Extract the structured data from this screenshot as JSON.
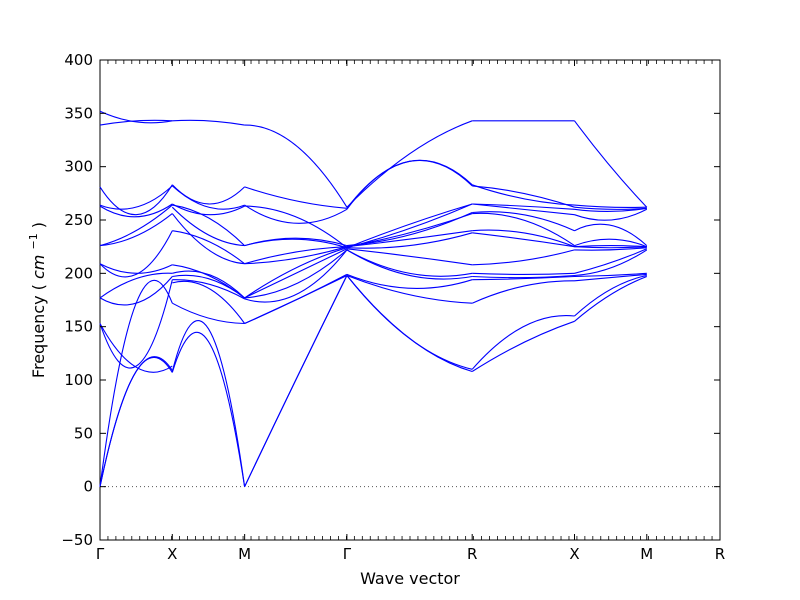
{
  "chart_data": {
    "type": "line",
    "xlabel": "Wave vector",
    "ylabel": "Frequency",
    "ylabel_unit_base": "cm",
    "ylabel_unit_exp": "−1",
    "ylim": [
      -50,
      400
    ],
    "yticks": [
      -50,
      0,
      50,
      100,
      150,
      200,
      250,
      300,
      350,
      400
    ],
    "path_points": [
      {
        "label": "Γ",
        "x": 0
      },
      {
        "label": "X",
        "x": 0.1166
      },
      {
        "label": "M",
        "x": 0.2333
      },
      {
        "label": "Γ",
        "x": 0.3982
      },
      {
        "label": "R",
        "x": 0.6003
      },
      {
        "label": "X",
        "x": 0.7653
      },
      {
        "label": "M",
        "x": 0.8819
      },
      {
        "label": "R",
        "x": 1.0
      }
    ],
    "xlim": [
      0,
      1.0
    ],
    "zero_line": true,
    "line_color": "#0000ff",
    "segments": [
      {
        "bands": [
          [
            0,
            108,
            107
          ],
          [
            0,
            108,
            109
          ],
          [
            0,
            172,
            172
          ],
          [
            153,
            112,
            113
          ],
          [
            153,
            113,
            194
          ],
          [
            177,
            172,
            197
          ],
          [
            177,
            195,
            200
          ],
          [
            209,
            200,
            208
          ],
          [
            209,
            199,
            240
          ],
          [
            226,
            235,
            256
          ],
          [
            226,
            240,
            264
          ],
          [
            263,
            253,
            265
          ],
          [
            264,
            262,
            282
          ],
          [
            281,
            255,
            283
          ],
          [
            339,
            343,
            343
          ],
          [
            352,
            342,
            343
          ]
        ]
      },
      {
        "bands": [
          [
            107,
            136,
            0
          ],
          [
            108,
            148,
            0
          ],
          [
            172,
            158,
            153
          ],
          [
            191,
            186,
            153
          ],
          [
            194,
            190,
            176
          ],
          [
            197,
            195,
            177
          ],
          [
            200,
            199,
            177
          ],
          [
            208,
            198,
            177
          ],
          [
            240,
            230,
            209
          ],
          [
            256,
            222,
            209
          ],
          [
            264,
            252,
            226
          ],
          [
            262,
            236,
            226
          ],
          [
            265,
            255,
            263
          ],
          [
            282,
            262,
            264
          ],
          [
            283,
            265,
            281
          ],
          [
            343,
            343,
            339
          ]
        ]
      },
      {
        "bands": [
          [
            0,
            100,
            198
          ],
          [
            0,
            100,
            198
          ],
          [
            153,
            175,
            198
          ],
          [
            153,
            175,
            199
          ],
          [
            176,
            180,
            222
          ],
          [
            177,
            190,
            222
          ],
          [
            177,
            200,
            223
          ],
          [
            177,
            205,
            224
          ],
          [
            209,
            214,
            225
          ],
          [
            209,
            220,
            225
          ],
          [
            226,
            233,
            226
          ],
          [
            226,
            232,
            224
          ],
          [
            263,
            253,
            224
          ],
          [
            264,
            247,
            260
          ],
          [
            281,
            268,
            261
          ],
          [
            339,
            320,
            262
          ]
        ]
      },
      {
        "bands": [
          [
            198,
            139,
            108
          ],
          [
            198,
            139,
            110
          ],
          [
            198,
            180,
            172
          ],
          [
            199,
            186,
            194
          ],
          [
            222,
            198,
            197
          ],
          [
            222,
            200,
            200
          ],
          [
            223,
            216,
            208
          ],
          [
            224,
            226,
            238
          ],
          [
            225,
            232,
            240
          ],
          [
            225,
            238,
            256
          ],
          [
            226,
            236,
            257
          ],
          [
            224,
            246,
            265
          ],
          [
            224,
            242,
            265
          ],
          [
            260,
            305,
            282
          ],
          [
            261,
            305,
            283
          ],
          [
            262,
            312,
            343
          ]
        ]
      },
      {
        "bands": [
          [
            108,
            135,
            155
          ],
          [
            110,
            150,
            160
          ],
          [
            172,
            188,
            193
          ],
          [
            194,
            195,
            197
          ],
          [
            197,
            196,
            198
          ],
          [
            200,
            199,
            200
          ],
          [
            208,
            212,
            222
          ],
          [
            238,
            232,
            225
          ],
          [
            240,
            238,
            225
          ],
          [
            256,
            250,
            226
          ],
          [
            257,
            255,
            240
          ],
          [
            265,
            260,
            255
          ],
          [
            265,
            263,
            260
          ],
          [
            282,
            275,
            262
          ],
          [
            283,
            270,
            264
          ],
          [
            343,
            343,
            343
          ]
        ]
      },
      {
        "bands": [
          [
            155,
            180,
            197
          ],
          [
            160,
            185,
            198
          ],
          [
            193,
            196,
            199
          ],
          [
            197,
            198,
            200
          ],
          [
            198,
            205,
            222
          ],
          [
            200,
            210,
            223
          ],
          [
            222,
            222,
            224
          ],
          [
            225,
            224,
            225
          ],
          [
            225,
            226,
            225
          ],
          [
            226,
            232,
            225
          ],
          [
            240,
            245,
            226
          ],
          [
            255,
            250,
            260
          ],
          [
            260,
            258,
            261
          ],
          [
            262,
            260,
            261
          ],
          [
            264,
            262,
            262
          ],
          [
            343,
            300,
            262
          ]
        ]
      }
    ]
  }
}
